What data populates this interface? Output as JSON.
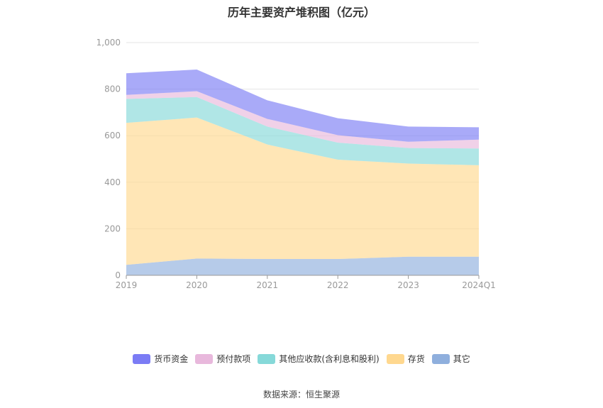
{
  "chart_data": {
    "type": "area",
    "stacked": true,
    "title": "历年主要资产堆积图（亿元）",
    "categories": [
      "2019",
      "2020",
      "2021",
      "2022",
      "2023",
      "2024Q1"
    ],
    "y_ticks": [
      "0",
      "200",
      "400",
      "600",
      "800",
      "1,000"
    ],
    "ylim": [
      0,
      1000
    ],
    "legend_position": "bottom",
    "series": [
      {
        "name": "其它",
        "color": "#8fafdd",
        "values": [
          45,
          72,
          70,
          70,
          80,
          80
        ]
      },
      {
        "name": "存货",
        "color": "#ffd88f",
        "values": [
          610,
          606,
          492,
          427,
          400,
          393
        ]
      },
      {
        "name": "其他应收款(含利息和股利)",
        "color": "#86d9d9",
        "values": [
          103,
          88,
          77,
          73,
          67,
          72
        ]
      },
      {
        "name": "预付款项",
        "color": "#e8b8dc",
        "values": [
          17,
          25,
          33,
          32,
          27,
          38
        ]
      },
      {
        "name": "货币资金",
        "color": "#7b7cf5",
        "values": [
          93,
          93,
          80,
          73,
          65,
          53
        ]
      }
    ],
    "legend_order": [
      "货币资金",
      "预付款项",
      "其他应收款(含利息和股利)",
      "存货",
      "其它"
    ]
  },
  "source": "数据来源：恒生聚源"
}
